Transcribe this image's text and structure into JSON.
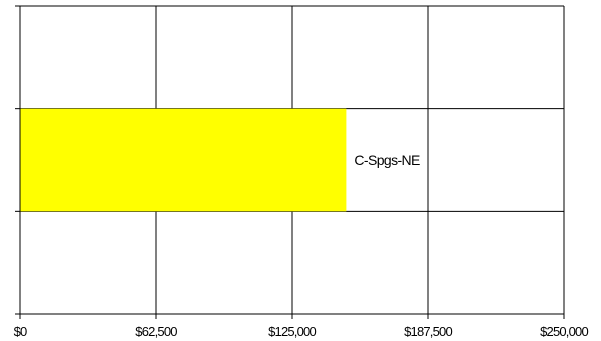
{
  "chart_data": {
    "type": "bar",
    "orientation": "horizontal",
    "categories": [
      "C-Spgs-NE"
    ],
    "values": [
      150000
    ],
    "xlim": [
      0,
      250000
    ],
    "xticks": [
      0,
      62500,
      125000,
      187500,
      250000
    ],
    "xtick_labels": [
      "$0",
      "$62,500",
      "$125,000",
      "$187,500",
      "$250,000"
    ],
    "grid": true,
    "bar_color": "#ffff00",
    "bar_label_position": "end-outside"
  }
}
